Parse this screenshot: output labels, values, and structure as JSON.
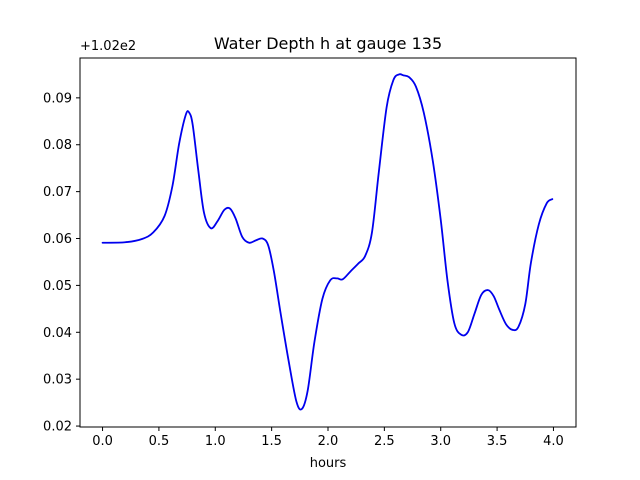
{
  "chart_data": {
    "type": "line",
    "title": "Water Depth h at gauge 135",
    "xlabel": "hours",
    "ylabel": "",
    "offset_label": "+1.02e2",
    "xlim": [
      -0.2,
      4.2
    ],
    "ylim": [
      0.0198,
      0.0985
    ],
    "xticks": [
      "0.0",
      "0.5",
      "1.0",
      "1.5",
      "2.0",
      "2.5",
      "3.0",
      "3.5",
      "4.0"
    ],
    "yticks": [
      "0.02",
      "0.03",
      "0.04",
      "0.05",
      "0.06",
      "0.07",
      "0.08",
      "0.09"
    ],
    "grid": false,
    "series": [
      {
        "color": "#0000ee",
        "x": [
          0.0,
          0.2,
          0.35,
          0.45,
          0.55,
          0.62,
          0.68,
          0.74,
          0.77,
          0.8,
          0.85,
          0.9,
          0.96,
          1.02,
          1.08,
          1.13,
          1.18,
          1.24,
          1.3,
          1.36,
          1.42,
          1.47,
          1.52,
          1.58,
          1.65,
          1.72,
          1.77,
          1.82,
          1.88,
          1.95,
          2.02,
          2.08,
          2.13,
          2.2,
          2.27,
          2.33,
          2.39,
          2.45,
          2.52,
          2.58,
          2.63,
          2.67,
          2.72,
          2.78,
          2.85,
          2.93,
          3.0,
          3.06,
          3.12,
          3.18,
          3.24,
          3.3,
          3.36,
          3.42,
          3.47,
          3.52,
          3.58,
          3.64,
          3.69,
          3.75,
          3.8,
          3.87,
          3.94,
          3.99
        ],
        "y": [
          0.0591,
          0.0592,
          0.0599,
          0.0613,
          0.0648,
          0.0712,
          0.0803,
          0.0865,
          0.0868,
          0.0842,
          0.0744,
          0.0655,
          0.0622,
          0.0637,
          0.0661,
          0.0664,
          0.0643,
          0.0603,
          0.0591,
          0.0596,
          0.06,
          0.0585,
          0.053,
          0.044,
          0.034,
          0.0252,
          0.0237,
          0.0276,
          0.038,
          0.0471,
          0.0511,
          0.0515,
          0.0513,
          0.053,
          0.0547,
          0.0563,
          0.0613,
          0.074,
          0.088,
          0.0938,
          0.095,
          0.0948,
          0.0944,
          0.0924,
          0.0868,
          0.0765,
          0.064,
          0.051,
          0.042,
          0.0395,
          0.04,
          0.044,
          0.048,
          0.049,
          0.0477,
          0.0448,
          0.0417,
          0.0405,
          0.0412,
          0.046,
          0.0548,
          0.063,
          0.0675,
          0.0684
        ]
      }
    ]
  }
}
